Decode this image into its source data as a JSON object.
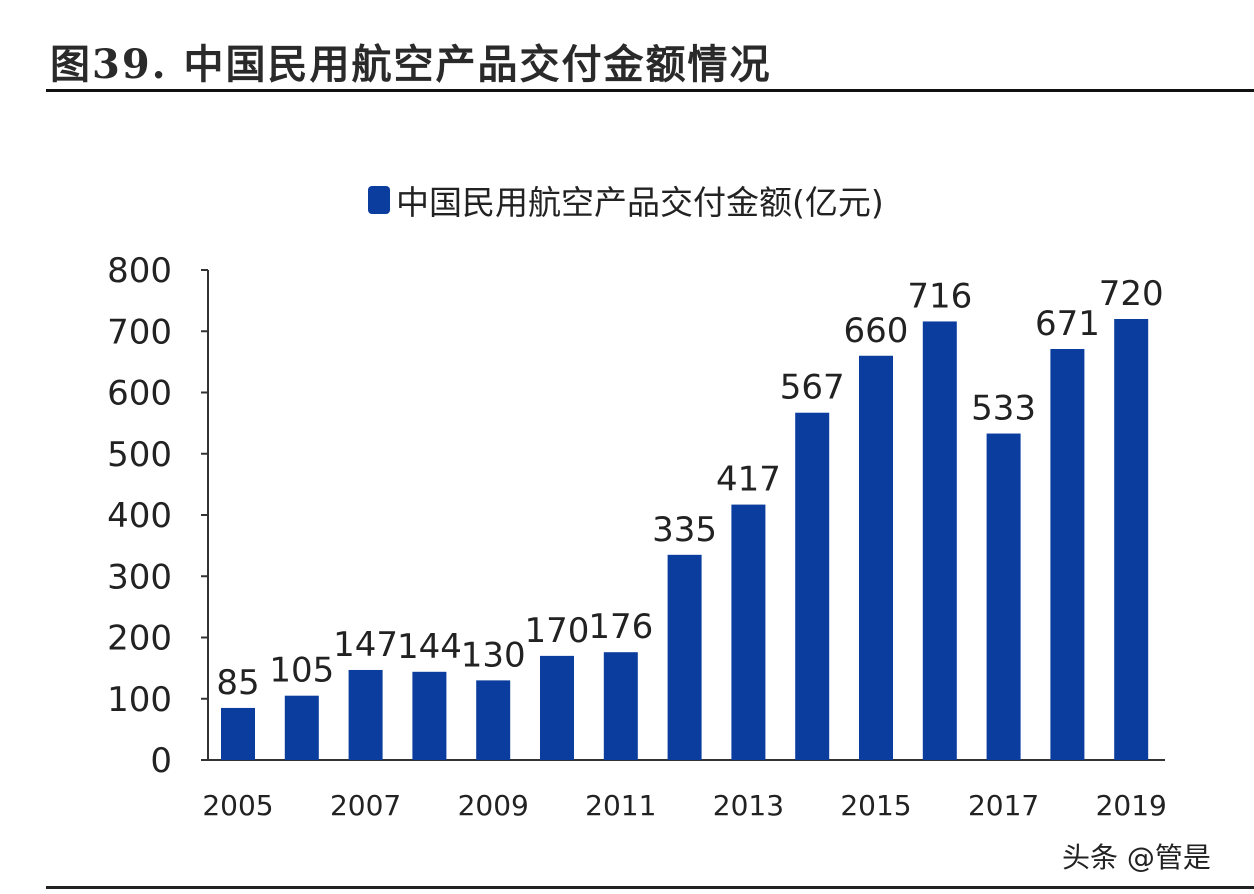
{
  "title": "图39. 中国民用航空产品交付金额情况",
  "watermark": "头条 @管是",
  "chart_data": {
    "type": "bar",
    "title": "",
    "xlabel": "",
    "ylabel": "",
    "ylim": [
      0,
      800
    ],
    "yticks": [
      0,
      100,
      200,
      300,
      400,
      500,
      600,
      700,
      800
    ],
    "grid": false,
    "legend_position": "top",
    "bar_color": "#0a3d9e",
    "categories": [
      "2005",
      "2006",
      "2007",
      "2008",
      "2009",
      "2010",
      "2011",
      "2012",
      "2013",
      "2014",
      "2015",
      "2016",
      "2017",
      "2018",
      "2019"
    ],
    "xtick_labels": [
      "2005",
      "2007",
      "2009",
      "2011",
      "2013",
      "2015",
      "2017",
      "2019"
    ],
    "series": [
      {
        "name": "中国民用航空产品交付金额(亿元)",
        "values": [
          85,
          105,
          147,
          144,
          130,
          170,
          176,
          335,
          417,
          567,
          660,
          716,
          533,
          671,
          720
        ]
      }
    ]
  }
}
